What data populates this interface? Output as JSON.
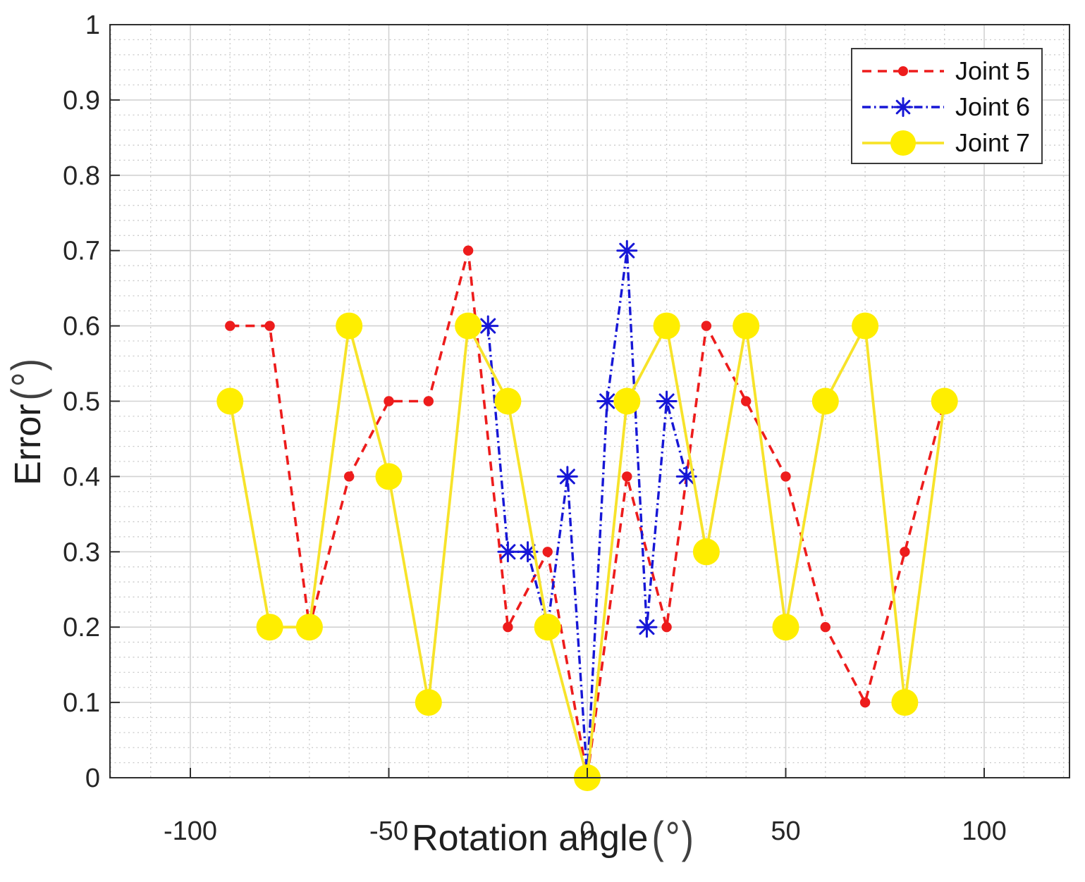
{
  "chart_data": {
    "type": "line",
    "title": "",
    "xlabel": "Rotation angle",
    "xlabel_unit": "(°)",
    "ylabel": "Error",
    "ylabel_unit": "(°)",
    "xlim": [
      -120.2,
      121.5
    ],
    "ylim": [
      0,
      1
    ],
    "x_tick_values": [
      -100,
      -50,
      0,
      50,
      100
    ],
    "x_tick_labels": [
      "-100",
      "-50",
      "0",
      "50",
      "100"
    ],
    "y_tick_values": [
      0,
      0.1,
      0.2,
      0.3,
      0.4,
      0.5,
      0.6,
      0.7,
      0.8,
      0.9,
      1
    ],
    "y_tick_labels": [
      "0",
      "0.1",
      "0.2",
      "0.3",
      "0.4",
      "0.5",
      "0.6",
      "0.7",
      "0.8",
      "0.9",
      "1"
    ],
    "x_minor_step": 10,
    "y_minor_step": 0.02,
    "grid": "on",
    "legend_position": "top-right",
    "series": [
      {
        "name": "Joint 5",
        "color": "#ed1c1c",
        "line_style": "dashed",
        "marker": "dot",
        "x": [
          -90,
          -80,
          -70,
          -60,
          -50,
          -40,
          -30,
          -20,
          -10,
          0,
          10,
          20,
          30,
          40,
          50,
          60,
          70,
          80,
          90
        ],
        "y": [
          0.6,
          0.6,
          0.2,
          0.4,
          0.5,
          0.5,
          0.7,
          0.2,
          0.3,
          0,
          0.4,
          0.2,
          0.6,
          0.5,
          0.4,
          0.2,
          0.1,
          0.3,
          0.5
        ]
      },
      {
        "name": "Joint 6",
        "color": "#1717d6",
        "line_style": "dashdot",
        "marker": "asterisk",
        "x": [
          -25,
          -20,
          -15,
          -10,
          -5,
          0,
          5,
          10,
          15,
          20,
          25
        ],
        "y": [
          0.6,
          0.3,
          0.3,
          0.2,
          0.4,
          0,
          0.5,
          0.7,
          0.2,
          0.5,
          0.4
        ]
      },
      {
        "name": "Joint 7",
        "color": "#f7e32a",
        "marker_color": "#ffee00",
        "line_style": "solid",
        "marker": "circle",
        "x": [
          -90,
          -80,
          -70,
          -60,
          -50,
          -40,
          -30,
          -20,
          -10,
          0,
          10,
          20,
          30,
          40,
          50,
          60,
          70,
          80,
          90
        ],
        "y": [
          0.5,
          0.2,
          0.2,
          0.6,
          0.4,
          0.1,
          0.6,
          0.5,
          0.2,
          0,
          0.5,
          0.6,
          0.3,
          0.6,
          0.2,
          0.5,
          0.6,
          0.1,
          0.5
        ]
      }
    ]
  }
}
